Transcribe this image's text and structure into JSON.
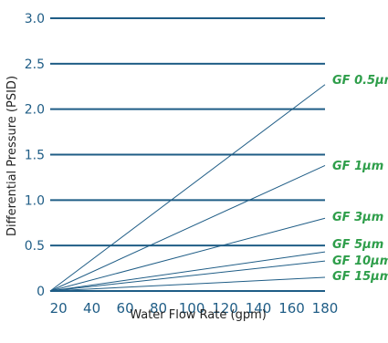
{
  "chart_data": {
    "type": "line",
    "xlabel": "Water Flow Rate (gpm)",
    "ylabel": "Differential Pressure (PSID)",
    "xlim": [
      15,
      180
    ],
    "ylim": [
      0,
      3.0
    ],
    "x_ticks": [
      "20",
      "40",
      "60",
      "80",
      "100",
      "120",
      "140",
      "160",
      "180"
    ],
    "y_ticks": [
      "0",
      "0.5",
      "1.0",
      "1.5",
      "2.0",
      "2.5",
      "3.0"
    ],
    "grid": true,
    "legend": "inline-right",
    "colors": {
      "grid": "#1f5d86",
      "series": "#1f5d86",
      "series_labels": "#2e9e4a",
      "ticks": "#1f5d86"
    },
    "series": [
      {
        "name": "GF 0.5µm",
        "x": [
          15,
          180
        ],
        "y": [
          0,
          2.27
        ]
      },
      {
        "name": "GF 1µm",
        "x": [
          15,
          180
        ],
        "y": [
          0,
          1.38
        ]
      },
      {
        "name": "GF 3µm",
        "x": [
          15,
          180
        ],
        "y": [
          0,
          0.8
        ]
      },
      {
        "name": "GF 5µm",
        "x": [
          15,
          180
        ],
        "y": [
          0,
          0.43
        ]
      },
      {
        "name": "GF 10µm",
        "x": [
          15,
          180
        ],
        "y": [
          0,
          0.33
        ]
      },
      {
        "name": "GF 15µm",
        "x": [
          15,
          180
        ],
        "y": [
          0,
          0.15
        ]
      }
    ]
  }
}
